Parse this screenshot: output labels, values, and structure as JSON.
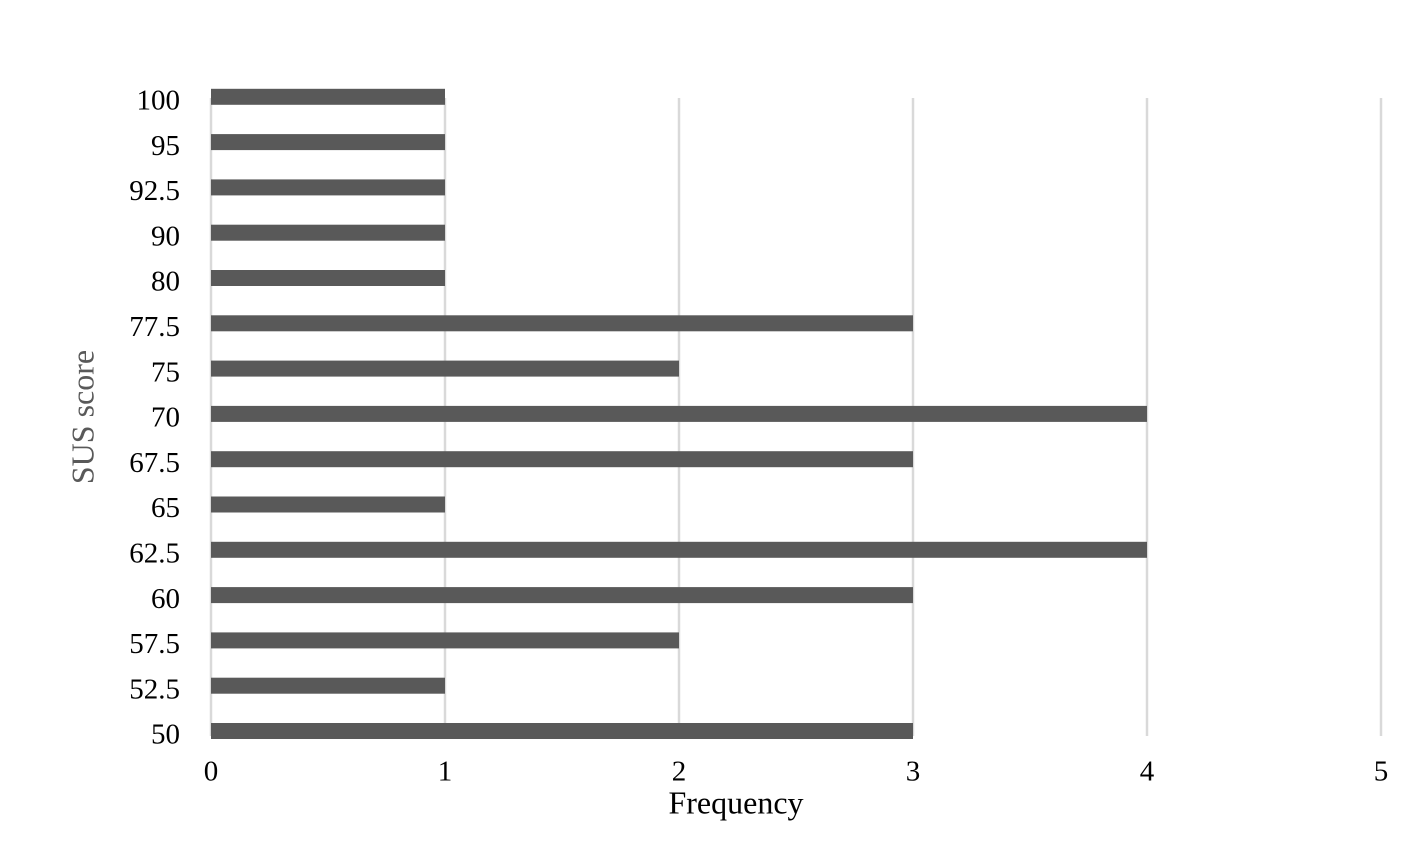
{
  "chart_data": {
    "type": "bar",
    "orientation": "horizontal",
    "x_label": "Frequency",
    "y_label": "SUS score",
    "categories": [
      "50",
      "52.5",
      "57.5",
      "60",
      "62.5",
      "65",
      "67.5",
      "70",
      "75",
      "77.5",
      "80",
      "90",
      "92.5",
      "95",
      "100"
    ],
    "values": [
      3,
      1,
      2,
      3,
      4,
      1,
      3,
      4,
      2,
      3,
      1,
      1,
      1,
      1,
      1
    ],
    "color": "#595959",
    "xlim": [
      0,
      5
    ],
    "xticks": [
      0,
      1,
      2,
      3,
      4,
      5
    ],
    "grid": true
  }
}
